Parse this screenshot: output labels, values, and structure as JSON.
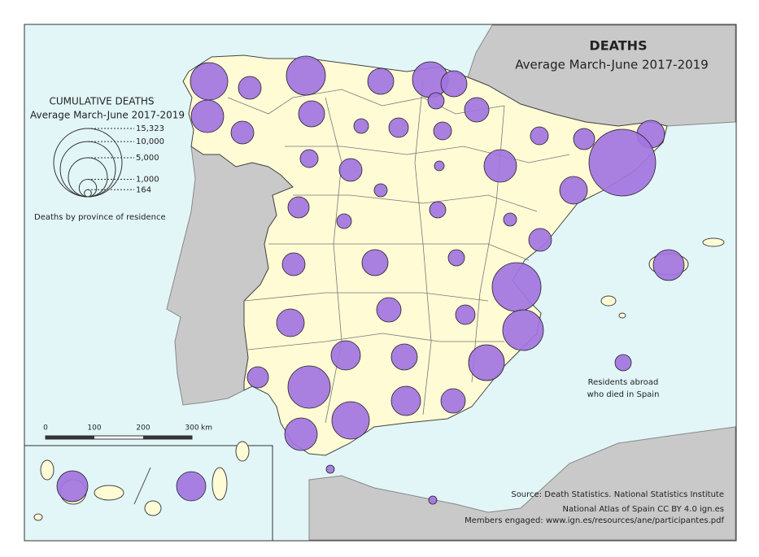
{
  "header": {
    "title": "DEATHS",
    "subtitle": "Average March-June 2017-2019"
  },
  "legend": {
    "title": "CUMULATIVE DEATHS",
    "subtitle": "Average March-June 2017-2019",
    "values": [
      {
        "value": 15323,
        "label": "15,323"
      },
      {
        "value": 10000,
        "label": "10,000"
      },
      {
        "value": 5000,
        "label": "5,000"
      },
      {
        "value": 1000,
        "label": "1,000"
      },
      164
    ],
    "note": "Deaths by province of residence"
  },
  "scale_bar": {
    "labels": [
      "0",
      "100",
      "200",
      "300",
      "km"
    ]
  },
  "abroad_label": [
    "Residents abroad",
    "who died in Spain"
  ],
  "circles": {
    "color": "#a274e0",
    "values": [
      4595,
      1702,
      5003,
      2224,
      4204,
      2224,
      869,
      1954,
      3474,
      1702,
      2224,
      704,
      1251,
      1051,
      1051,
      2510,
      1468,
      14602,
      3474,
      1051,
      1702,
      313,
      556,
      2510,
      1468,
      704,
      869,
      556,
      1702,
      1702,
      2224,
      869,
      7817,
      3136,
      2510,
      1954,
      1251,
      5429,
      4204,
      1468,
      5872,
      2814,
      2224,
      2814,
      1954,
      4595,
      3474,
      217,
      217,
      869,
      3136,
      2814
    ]
  },
  "source": [
    "Source: Death Statistics. National Statistics Institute",
    "National Atlas of Spain CC BY 4.0 ign.es",
    "Members engaged: www.ign.es/resources/ane/participantes.pdf"
  ]
}
